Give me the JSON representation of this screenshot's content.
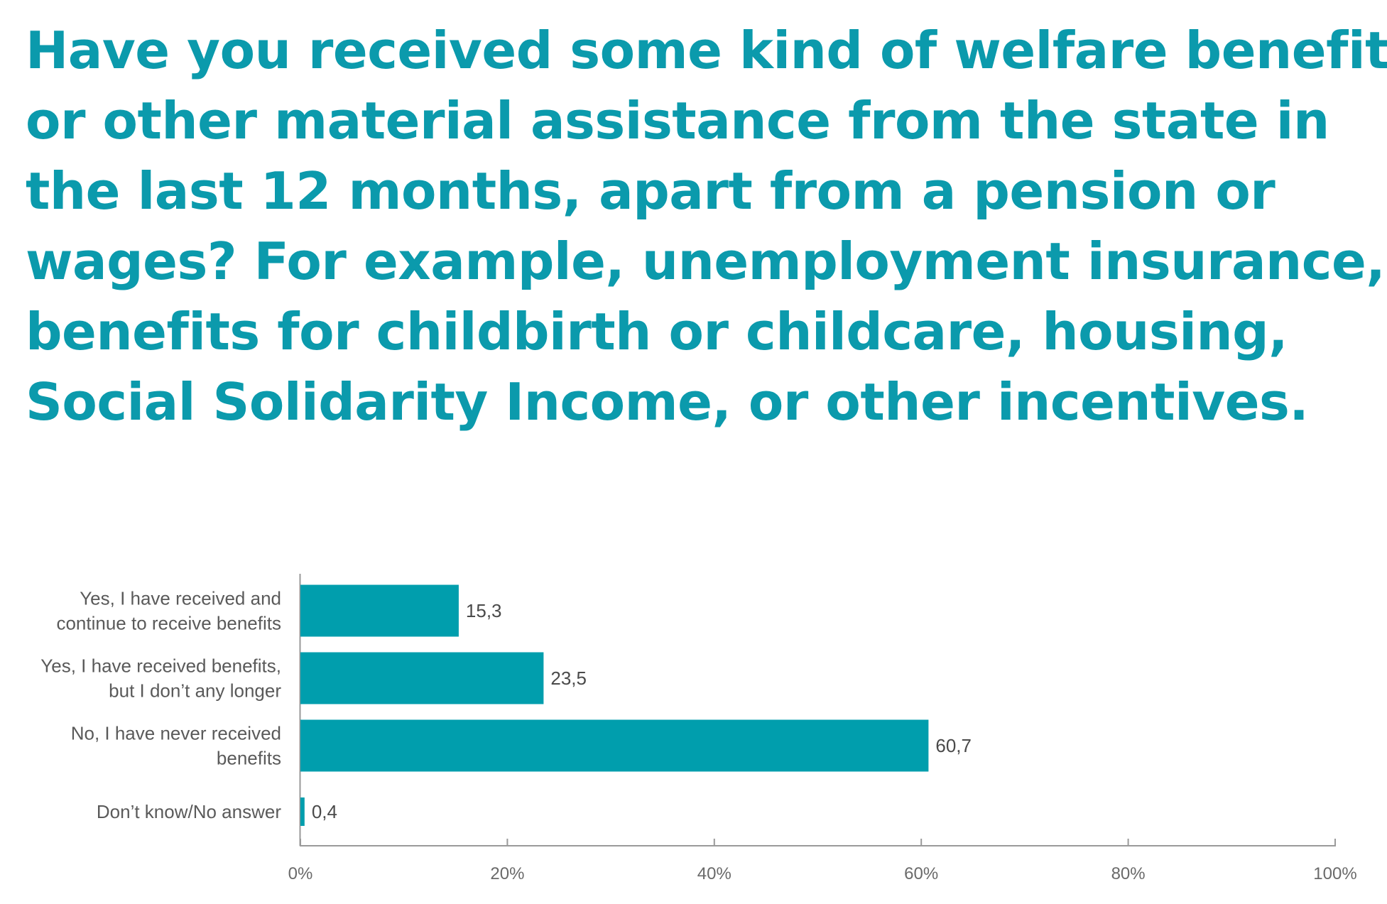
{
  "title_lines": [
    "Have you received some kind of welfare benefit",
    "or other material assistance from the state in",
    "the last 12 months, apart from a pension or",
    "wages? For example, unemployment insurance,",
    "benefits for childbirth or childcare, housing,",
    "Social Solidarity Income, or other incentives."
  ],
  "colors": {
    "accent": "#0b9aac",
    "bar": "#009ead",
    "axis": "#9a9a9a"
  },
  "chart_data": {
    "type": "bar",
    "orientation": "horizontal",
    "title": "Have you received some kind of welfare benefit or other material assistance from the state in the last 12 months, apart from a pension or wages? For example, unemployment insurance, benefits for childbirth or childcare, housing, Social Solidarity Income, or other incentives.",
    "categories": [
      [
        "Yes, I have received and",
        "continue to receive benefits"
      ],
      [
        "Yes, I have received benefits,",
        "but I don’t any longer"
      ],
      [
        "No, I have never received",
        "benefits"
      ],
      [
        "Don’t know/No answer"
      ]
    ],
    "values": [
      15.3,
      23.5,
      60.7,
      0.4
    ],
    "value_labels": [
      "15,3",
      "23,5",
      "60,7",
      "0,4"
    ],
    "xlim": [
      0,
      100
    ],
    "xticks": [
      0,
      20,
      40,
      60,
      80,
      100
    ],
    "xtick_labels": [
      "0%",
      "20%",
      "40%",
      "60%",
      "80%",
      "100%"
    ],
    "xlabel": "",
    "ylabel": "",
    "grid": false,
    "legend": "none"
  }
}
